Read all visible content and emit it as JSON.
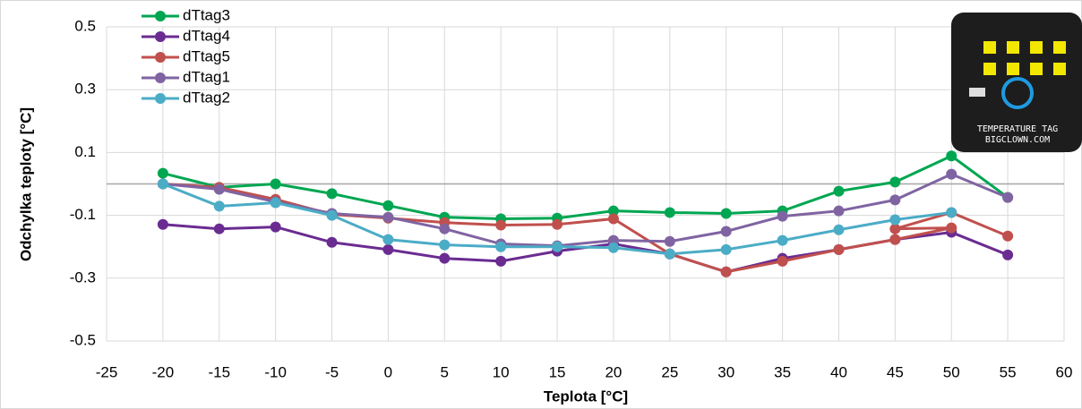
{
  "chart_data": {
    "type": "line",
    "y_label": "Odchylka teploty [°C]",
    "x_label": "Teplota [°C]",
    "xlim": [
      -25,
      60
    ],
    "xticks": [
      -25,
      -20,
      -15,
      -10,
      -5,
      0,
      5,
      10,
      15,
      20,
      25,
      30,
      35,
      40,
      45,
      50,
      55,
      60
    ],
    "ylim": [
      -0.5,
      0.5
    ],
    "yticks": [
      -0.5,
      -0.3,
      -0.1,
      0.1,
      0.3,
      0.5
    ],
    "grid": true,
    "legend": "upper left",
    "series": [
      {
        "name": "dTtag3",
        "color": "#00a651",
        "x": [
          -20,
          -15,
          -10,
          -5,
          0,
          5,
          10,
          15,
          20,
          25,
          30,
          35,
          40,
          45,
          50,
          55
        ],
        "values": [
          0.034,
          -0.011,
          0.0,
          -0.031,
          -0.069,
          -0.106,
          -0.111,
          -0.109,
          -0.086,
          -0.091,
          -0.094,
          -0.086,
          -0.023,
          0.006,
          0.089,
          -0.043
        ]
      },
      {
        "name": "dTtag4",
        "color": "#6a2c91",
        "x": [
          -20,
          -15,
          -10,
          -5,
          0,
          5,
          10,
          15,
          20,
          25,
          30,
          35,
          40,
          45,
          50,
          55
        ],
        "values": [
          -0.129,
          -0.143,
          -0.137,
          -0.186,
          -0.209,
          -0.237,
          -0.246,
          -0.214,
          -0.191,
          -0.223,
          -0.28,
          -0.237,
          -0.209,
          -0.177,
          -0.154,
          -0.226
        ]
      },
      {
        "name": "dTtag5",
        "color": "#c0504d",
        "x": [
          -20,
          -15,
          -10,
          -5,
          0,
          5,
          10,
          15,
          20,
          25,
          30,
          35,
          40,
          45,
          50,
          45,
          50,
          55
        ],
        "values": [
          0.0,
          -0.011,
          -0.049,
          -0.097,
          -0.109,
          -0.123,
          -0.131,
          -0.129,
          -0.111,
          -0.223,
          -0.28,
          -0.246,
          -0.209,
          -0.177,
          -0.14,
          -0.143,
          -0.091,
          -0.166
        ]
      },
      {
        "name": "dTtag1",
        "color": "#8064a2",
        "x": [
          -20,
          -15,
          -10,
          -5,
          0,
          5,
          10,
          15,
          20,
          25,
          30,
          35,
          40,
          45,
          50,
          55
        ],
        "values": [
          0.0,
          -0.017,
          -0.057,
          -0.094,
          -0.106,
          -0.143,
          -0.191,
          -0.197,
          -0.18,
          -0.183,
          -0.151,
          -0.103,
          -0.086,
          -0.051,
          0.031,
          -0.043
        ]
      },
      {
        "name": "dTtag2",
        "color": "#4bacc6",
        "x": [
          -20,
          -15,
          -10,
          -5,
          0,
          5,
          10,
          15,
          20,
          25,
          30,
          35,
          40,
          45,
          50
        ],
        "values": [
          0.0,
          -0.071,
          -0.06,
          -0.1,
          -0.177,
          -0.194,
          -0.2,
          -0.2,
          -0.203,
          -0.223,
          -0.209,
          -0.18,
          -0.146,
          -0.114,
          -0.091
        ]
      }
    ]
  },
  "inset": {
    "lines": [
      "TEMPERATURE TAG",
      "BIGCLOWN.COM"
    ]
  }
}
